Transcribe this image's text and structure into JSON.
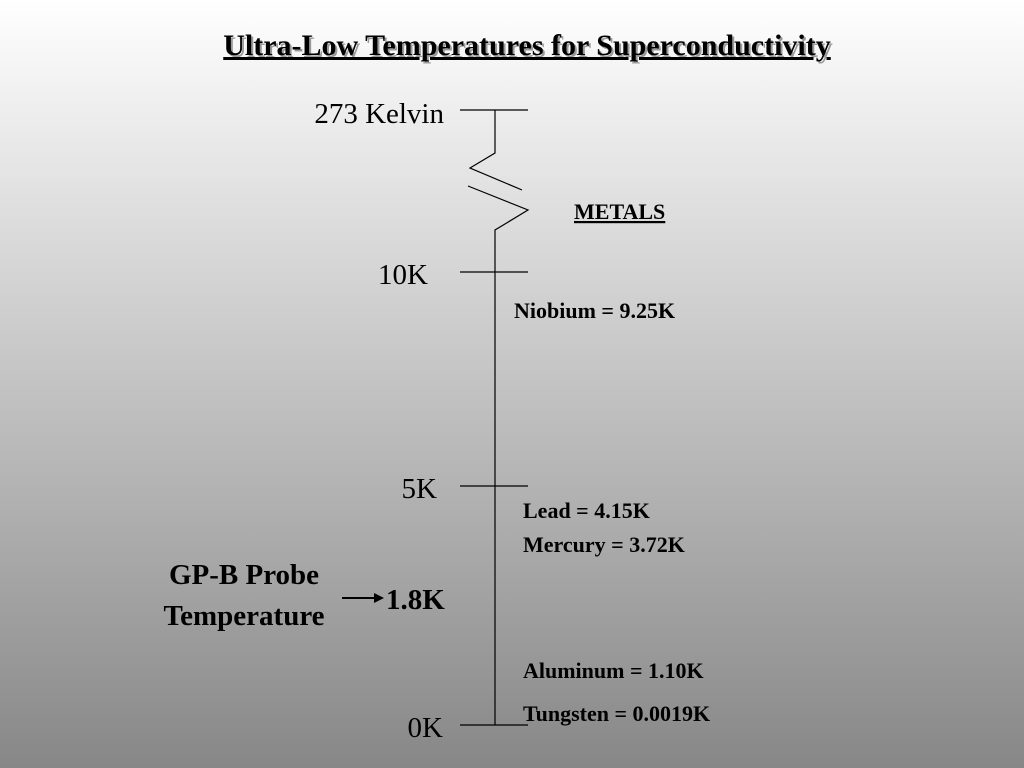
{
  "header": {
    "title": "Ultra-Low Temperatures for Superconductivity"
  },
  "scale": {
    "labels": [
      "273 Kelvin",
      "10K",
      "5K",
      "0K"
    ]
  },
  "metals": {
    "heading": "METALS",
    "items": [
      "Niobium = 9.25K",
      "Lead = 4.15K",
      "Mercury = 3.72K",
      "Aluminum = 1.10K",
      "Tungsten = 0.0019K"
    ]
  },
  "probe": {
    "label_lines": [
      "GP-B Probe",
      "Temperature"
    ],
    "value": "1.8K"
  }
}
